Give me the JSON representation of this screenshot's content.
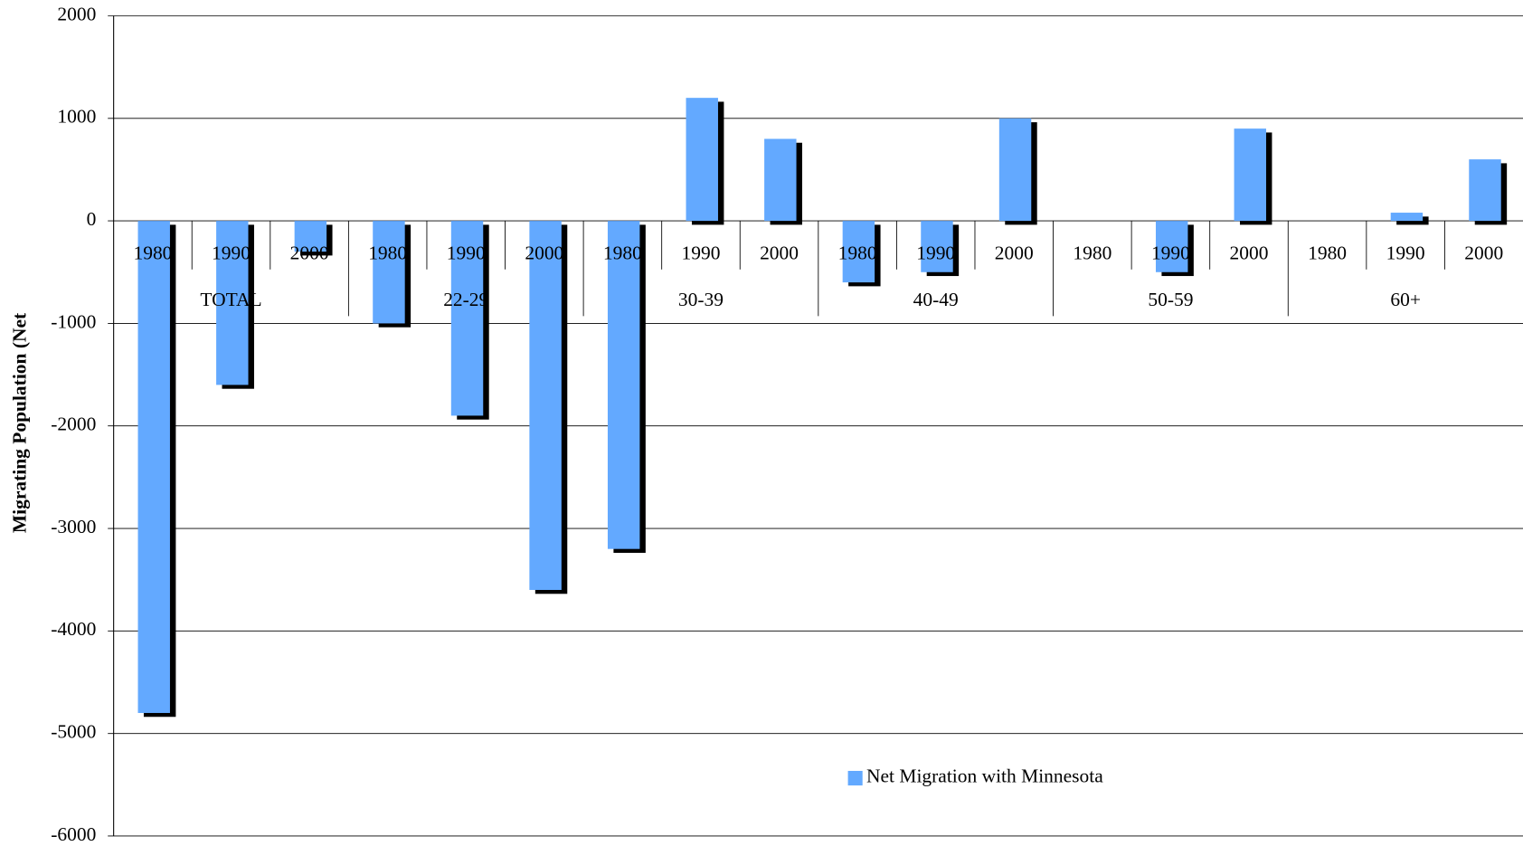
{
  "chart_data": {
    "type": "bar",
    "y_label": "Migrating Population (Net",
    "categories": [
      "1980",
      "1990",
      "2000",
      "1980",
      "1990",
      "2000",
      "1980",
      "1990",
      "2000",
      "1980",
      "1990",
      "2000",
      "1980",
      "1990",
      "2000",
      "1980",
      "1990",
      "2000"
    ],
    "groups": [
      "TOTAL",
      "22-29",
      "30-39",
      "40-49",
      "50-59",
      "60+"
    ],
    "series": [
      {
        "name": "Net Migration with Minnesota",
        "color": "#63a9ff",
        "values": [
          -4800,
          -1600,
          -300,
          -1000,
          -1900,
          -3600,
          -3200,
          1200,
          800,
          -600,
          -500,
          1000,
          0,
          -500,
          900,
          0,
          80,
          600
        ]
      }
    ],
    "ylim": [
      -6000,
      2000
    ],
    "yticks": [
      -6000,
      -5000,
      -4000,
      -3000,
      -2000,
      -1000,
      0,
      1000,
      2000
    ],
    "grid": true
  }
}
